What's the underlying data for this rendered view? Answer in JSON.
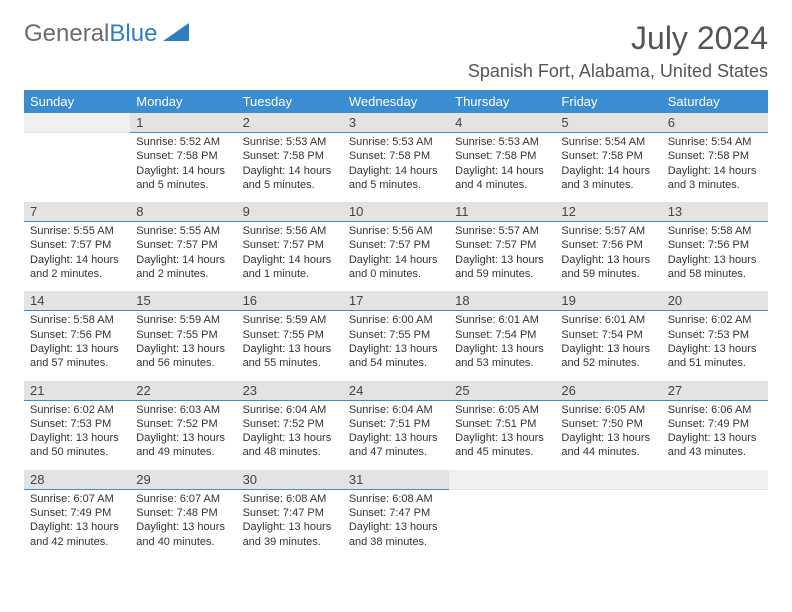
{
  "logo": {
    "text1": "General",
    "text2": "Blue"
  },
  "title": "July 2024",
  "location": "Spanish Fort, Alabama, United States",
  "colors": {
    "header_bg": "#3a8dd0",
    "header_fg": "#ffffff",
    "daynum_bg": "#e3e3e3",
    "accent": "#3a8dd0",
    "text": "#333333",
    "title_color": "#555555"
  },
  "weekdays": [
    "Sunday",
    "Monday",
    "Tuesday",
    "Wednesday",
    "Thursday",
    "Friday",
    "Saturday"
  ],
  "weeks": [
    [
      {
        "n": "",
        "sunrise": "",
        "sunset": "",
        "daylight": ""
      },
      {
        "n": "1",
        "sunrise": "Sunrise: 5:52 AM",
        "sunset": "Sunset: 7:58 PM",
        "daylight": "Daylight: 14 hours and 5 minutes."
      },
      {
        "n": "2",
        "sunrise": "Sunrise: 5:53 AM",
        "sunset": "Sunset: 7:58 PM",
        "daylight": "Daylight: 14 hours and 5 minutes."
      },
      {
        "n": "3",
        "sunrise": "Sunrise: 5:53 AM",
        "sunset": "Sunset: 7:58 PM",
        "daylight": "Daylight: 14 hours and 5 minutes."
      },
      {
        "n": "4",
        "sunrise": "Sunrise: 5:53 AM",
        "sunset": "Sunset: 7:58 PM",
        "daylight": "Daylight: 14 hours and 4 minutes."
      },
      {
        "n": "5",
        "sunrise": "Sunrise: 5:54 AM",
        "sunset": "Sunset: 7:58 PM",
        "daylight": "Daylight: 14 hours and 3 minutes."
      },
      {
        "n": "6",
        "sunrise": "Sunrise: 5:54 AM",
        "sunset": "Sunset: 7:58 PM",
        "daylight": "Daylight: 14 hours and 3 minutes."
      }
    ],
    [
      {
        "n": "7",
        "sunrise": "Sunrise: 5:55 AM",
        "sunset": "Sunset: 7:57 PM",
        "daylight": "Daylight: 14 hours and 2 minutes."
      },
      {
        "n": "8",
        "sunrise": "Sunrise: 5:55 AM",
        "sunset": "Sunset: 7:57 PM",
        "daylight": "Daylight: 14 hours and 2 minutes."
      },
      {
        "n": "9",
        "sunrise": "Sunrise: 5:56 AM",
        "sunset": "Sunset: 7:57 PM",
        "daylight": "Daylight: 14 hours and 1 minute."
      },
      {
        "n": "10",
        "sunrise": "Sunrise: 5:56 AM",
        "sunset": "Sunset: 7:57 PM",
        "daylight": "Daylight: 14 hours and 0 minutes."
      },
      {
        "n": "11",
        "sunrise": "Sunrise: 5:57 AM",
        "sunset": "Sunset: 7:57 PM",
        "daylight": "Daylight: 13 hours and 59 minutes."
      },
      {
        "n": "12",
        "sunrise": "Sunrise: 5:57 AM",
        "sunset": "Sunset: 7:56 PM",
        "daylight": "Daylight: 13 hours and 59 minutes."
      },
      {
        "n": "13",
        "sunrise": "Sunrise: 5:58 AM",
        "sunset": "Sunset: 7:56 PM",
        "daylight": "Daylight: 13 hours and 58 minutes."
      }
    ],
    [
      {
        "n": "14",
        "sunrise": "Sunrise: 5:58 AM",
        "sunset": "Sunset: 7:56 PM",
        "daylight": "Daylight: 13 hours and 57 minutes."
      },
      {
        "n": "15",
        "sunrise": "Sunrise: 5:59 AM",
        "sunset": "Sunset: 7:55 PM",
        "daylight": "Daylight: 13 hours and 56 minutes."
      },
      {
        "n": "16",
        "sunrise": "Sunrise: 5:59 AM",
        "sunset": "Sunset: 7:55 PM",
        "daylight": "Daylight: 13 hours and 55 minutes."
      },
      {
        "n": "17",
        "sunrise": "Sunrise: 6:00 AM",
        "sunset": "Sunset: 7:55 PM",
        "daylight": "Daylight: 13 hours and 54 minutes."
      },
      {
        "n": "18",
        "sunrise": "Sunrise: 6:01 AM",
        "sunset": "Sunset: 7:54 PM",
        "daylight": "Daylight: 13 hours and 53 minutes."
      },
      {
        "n": "19",
        "sunrise": "Sunrise: 6:01 AM",
        "sunset": "Sunset: 7:54 PM",
        "daylight": "Daylight: 13 hours and 52 minutes."
      },
      {
        "n": "20",
        "sunrise": "Sunrise: 6:02 AM",
        "sunset": "Sunset: 7:53 PM",
        "daylight": "Daylight: 13 hours and 51 minutes."
      }
    ],
    [
      {
        "n": "21",
        "sunrise": "Sunrise: 6:02 AM",
        "sunset": "Sunset: 7:53 PM",
        "daylight": "Daylight: 13 hours and 50 minutes."
      },
      {
        "n": "22",
        "sunrise": "Sunrise: 6:03 AM",
        "sunset": "Sunset: 7:52 PM",
        "daylight": "Daylight: 13 hours and 49 minutes."
      },
      {
        "n": "23",
        "sunrise": "Sunrise: 6:04 AM",
        "sunset": "Sunset: 7:52 PM",
        "daylight": "Daylight: 13 hours and 48 minutes."
      },
      {
        "n": "24",
        "sunrise": "Sunrise: 6:04 AM",
        "sunset": "Sunset: 7:51 PM",
        "daylight": "Daylight: 13 hours and 47 minutes."
      },
      {
        "n": "25",
        "sunrise": "Sunrise: 6:05 AM",
        "sunset": "Sunset: 7:51 PM",
        "daylight": "Daylight: 13 hours and 45 minutes."
      },
      {
        "n": "26",
        "sunrise": "Sunrise: 6:05 AM",
        "sunset": "Sunset: 7:50 PM",
        "daylight": "Daylight: 13 hours and 44 minutes."
      },
      {
        "n": "27",
        "sunrise": "Sunrise: 6:06 AM",
        "sunset": "Sunset: 7:49 PM",
        "daylight": "Daylight: 13 hours and 43 minutes."
      }
    ],
    [
      {
        "n": "28",
        "sunrise": "Sunrise: 6:07 AM",
        "sunset": "Sunset: 7:49 PM",
        "daylight": "Daylight: 13 hours and 42 minutes."
      },
      {
        "n": "29",
        "sunrise": "Sunrise: 6:07 AM",
        "sunset": "Sunset: 7:48 PM",
        "daylight": "Daylight: 13 hours and 40 minutes."
      },
      {
        "n": "30",
        "sunrise": "Sunrise: 6:08 AM",
        "sunset": "Sunset: 7:47 PM",
        "daylight": "Daylight: 13 hours and 39 minutes."
      },
      {
        "n": "31",
        "sunrise": "Sunrise: 6:08 AM",
        "sunset": "Sunset: 7:47 PM",
        "daylight": "Daylight: 13 hours and 38 minutes."
      },
      {
        "n": "",
        "sunrise": "",
        "sunset": "",
        "daylight": ""
      },
      {
        "n": "",
        "sunrise": "",
        "sunset": "",
        "daylight": ""
      },
      {
        "n": "",
        "sunrise": "",
        "sunset": "",
        "daylight": ""
      }
    ]
  ]
}
